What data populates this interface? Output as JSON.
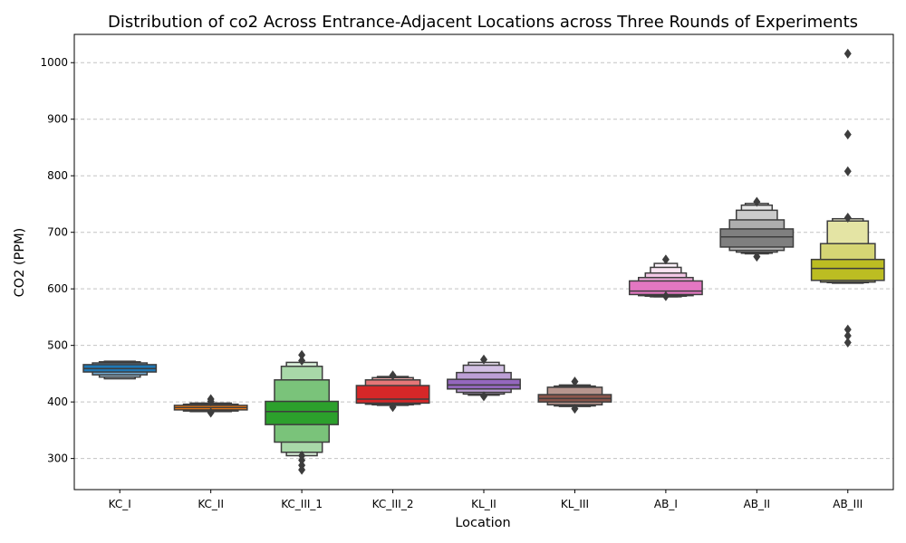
{
  "chart_data": {
    "type": "boxenplot",
    "title": "Distribution of co2 Across Entrance-Adjacent Locations across Three Rounds of Experiments",
    "xlabel": "Location",
    "ylabel": "CO2 (PPM)",
    "ylim": [
      245,
      1050
    ],
    "yticks": [
      300,
      400,
      500,
      600,
      700,
      800,
      900,
      1000
    ],
    "grid": "y-dashed",
    "categories": [
      "KC_I",
      "KC_II",
      "KC_III_1",
      "KC_III_2",
      "KL_II",
      "KL_III",
      "AB_I",
      "AB_II",
      "AB_III"
    ],
    "series": [
      {
        "category": "KC_I",
        "color": "#1f77b4",
        "median": 459,
        "levels": [
          [
            453,
            466
          ],
          [
            448,
            469
          ],
          [
            444,
            471
          ],
          [
            441,
            472
          ]
        ],
        "outliers": []
      },
      {
        "category": "KC_II",
        "color": "#ff7f0e",
        "median": 390,
        "levels": [
          [
            386,
            394
          ],
          [
            384,
            396
          ],
          [
            383,
            398
          ]
        ],
        "outliers": [
          405,
          401,
          381
        ]
      },
      {
        "category": "KC_III_1",
        "color": "#2ca02c",
        "median": 383,
        "levels": [
          [
            360,
            401
          ],
          [
            329,
            439
          ],
          [
            311,
            463
          ],
          [
            305,
            470
          ]
        ],
        "outliers": [
          483,
          473,
          305,
          297,
          288,
          280
        ]
      },
      {
        "category": "KC_III_2",
        "color": "#d62728",
        "median": 405,
        "levels": [
          [
            398,
            429
          ],
          [
            396,
            439
          ],
          [
            395,
            443
          ],
          [
            394,
            445
          ]
        ],
        "outliers": [
          447,
          391
        ]
      },
      {
        "category": "KL_II",
        "color": "#9467bd",
        "median": 430,
        "levels": [
          [
            423,
            440
          ],
          [
            417,
            452
          ],
          [
            414,
            465
          ],
          [
            412,
            470
          ]
        ],
        "outliers": [
          475,
          410
        ]
      },
      {
        "category": "KL_III",
        "color": "#8c564b",
        "median": 406,
        "levels": [
          [
            400,
            413
          ],
          [
            395,
            426
          ],
          [
            393,
            428
          ],
          [
            392,
            430
          ]
        ],
        "outliers": [
          436,
          388
        ]
      },
      {
        "category": "AB_I",
        "color": "#e377c2",
        "median": 596,
        "levels": [
          [
            590,
            614
          ],
          [
            588,
            620
          ],
          [
            587,
            628
          ],
          [
            586,
            638
          ],
          [
            586,
            645
          ]
        ],
        "outliers": [
          652,
          587
        ]
      },
      {
        "category": "AB_II",
        "color": "#7f7f7f",
        "median": 692,
        "levels": [
          [
            674,
            706
          ],
          [
            668,
            722
          ],
          [
            665,
            739
          ],
          [
            663,
            748
          ],
          [
            662,
            751
          ]
        ],
        "outliers": [
          754,
          657
        ]
      },
      {
        "category": "AB_III",
        "color": "#bcbd22",
        "median": 636,
        "levels": [
          [
            615,
            652
          ],
          [
            612,
            680
          ],
          [
            611,
            720
          ],
          [
            610,
            724
          ]
        ],
        "outliers": [
          1016,
          873,
          808,
          726,
          528,
          517,
          505
        ]
      }
    ]
  }
}
